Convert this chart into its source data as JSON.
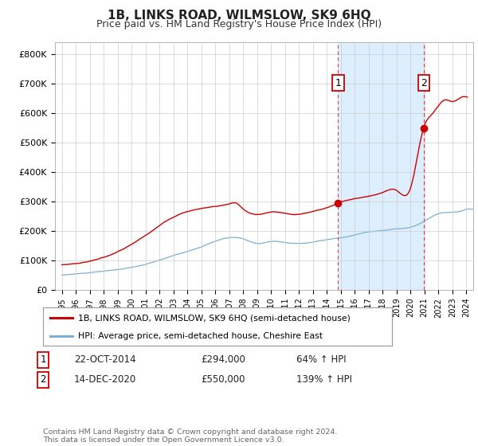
{
  "title": "1B, LINKS ROAD, WILMSLOW, SK9 6HQ",
  "subtitle": "Price paid vs. HM Land Registry's House Price Index (HPI)",
  "ylabel_ticks": [
    "£0",
    "£100K",
    "£200K",
    "£300K",
    "£400K",
    "£500K",
    "£600K",
    "£700K",
    "£800K"
  ],
  "ytick_values": [
    0,
    100000,
    200000,
    300000,
    400000,
    500000,
    600000,
    700000,
    800000
  ],
  "ylim": [
    0,
    840000
  ],
  "xlim_start": 1994.5,
  "xlim_end": 2024.5,
  "line1_color": "#cc0000",
  "line2_color": "#7bafd4",
  "shade_color": "#ddeeff",
  "vline_color": "#dd4444",
  "point1_x": 2014.81,
  "point1_y": 294000,
  "point2_x": 2020.96,
  "point2_y": 550000,
  "legend_line1": "1B, LINKS ROAD, WILMSLOW, SK9 6HQ (semi-detached house)",
  "legend_line2": "HPI: Average price, semi-detached house, Cheshire East",
  "note1_label": "1",
  "note1_date": "22-OCT-2014",
  "note1_price": "£294,000",
  "note1_hpi": "64% ↑ HPI",
  "note2_label": "2",
  "note2_date": "14-DEC-2020",
  "note2_price": "£550,000",
  "note2_hpi": "139% ↑ HPI",
  "footer": "Contains HM Land Registry data © Crown copyright and database right 2024.\nThis data is licensed under the Open Government Licence v3.0.",
  "background_color": "#ffffff",
  "grid_color": "#cccccc"
}
